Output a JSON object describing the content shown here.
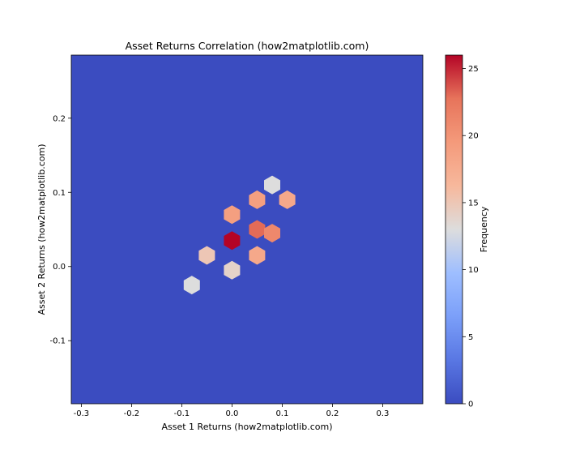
{
  "chart_data": {
    "type": "heatmap",
    "title": "Asset Returns Correlation (how2matplotlib.com)",
    "xlabel": "Asset 1 Returns (how2matplotlib.com)",
    "ylabel": "Asset 2 Returns (how2matplotlib.com)",
    "colorbar_label": "Frequency",
    "colormap": "coolwarm",
    "colors": {
      "low": "#3b4cc0",
      "mid": "#dddddd",
      "high": "#b40426"
    },
    "xlim": [
      -0.32,
      0.38
    ],
    "ylim": [
      -0.185,
      0.285
    ],
    "x_ticks": [
      -0.3,
      -0.2,
      -0.1,
      0.0,
      0.1,
      0.2,
      0.3
    ],
    "x_tick_labels": [
      "-0.3",
      "-0.2",
      "-0.1",
      "0.0",
      "0.1",
      "0.2",
      "0.3"
    ],
    "y_ticks": [
      -0.1,
      0.0,
      0.1,
      0.2
    ],
    "y_tick_labels": [
      "-0.1",
      "0.0",
      "0.1",
      "0.2"
    ],
    "color_range": [
      0,
      26
    ],
    "colorbar_ticks": [
      0,
      5,
      10,
      15,
      20,
      25
    ],
    "colorbar_tick_labels": [
      "0",
      "5",
      "10",
      "15",
      "20",
      "25"
    ],
    "bins": [
      {
        "x": 0.0,
        "y": 0.035,
        "value": 26
      },
      {
        "x": 0.05,
        "y": 0.05,
        "value": 23
      },
      {
        "x": 0.08,
        "y": 0.045,
        "value": 21
      },
      {
        "x": 0.05,
        "y": 0.09,
        "value": 19
      },
      {
        "x": 0.0,
        "y": 0.07,
        "value": 19
      },
      {
        "x": 0.05,
        "y": 0.015,
        "value": 18
      },
      {
        "x": 0.11,
        "y": 0.09,
        "value": 18
      },
      {
        "x": -0.05,
        "y": 0.015,
        "value": 15
      },
      {
        "x": -0.08,
        "y": -0.025,
        "value": 13
      },
      {
        "x": 0.08,
        "y": 0.11,
        "value": 13
      },
      {
        "x": 0.0,
        "y": -0.005,
        "value": 14
      }
    ],
    "grid": false,
    "legend": "none"
  }
}
